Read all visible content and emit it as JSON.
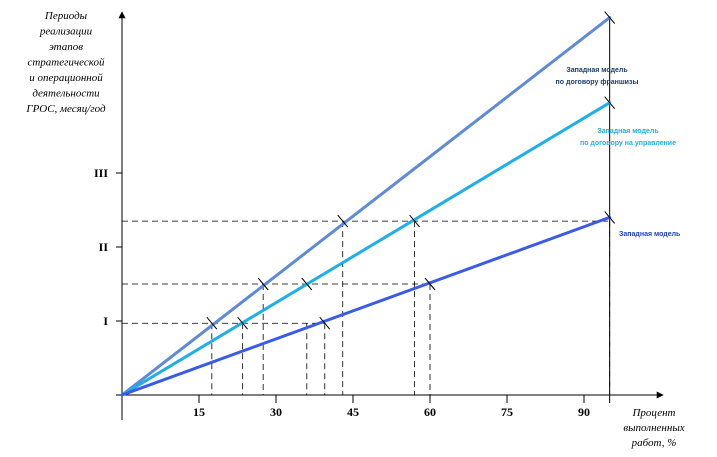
{
  "chart_data": {
    "type": "line",
    "title": "",
    "ylabel_lines": [
      "Периоды",
      "реализации",
      "этапов",
      "стратегической",
      "и операционной",
      "деятельности",
      "ГРОС, месяц/год"
    ],
    "xlabel_lines": [
      "Процент",
      "выполненных",
      "работ, %"
    ],
    "x_ticks": [
      {
        "label": "15",
        "value": 15
      },
      {
        "label": "30",
        "value": 30
      },
      {
        "label": "45",
        "value": 45
      },
      {
        "label": "60",
        "value": 60
      },
      {
        "label": "75",
        "value": 75
      },
      {
        "label": "90",
        "value": 90
      }
    ],
    "y_ticks": [
      {
        "label": "I",
        "value": 1
      },
      {
        "label": "II",
        "value": 2
      },
      {
        "label": "III",
        "value": 3
      }
    ],
    "xlim": [
      0,
      105
    ],
    "ylim": [
      0,
      5.2
    ],
    "series": [
      {
        "label_lines": [
          "Западная модель",
          "по договору франшизы"
        ],
        "color": "#5e8ad6",
        "x": [
          0,
          95
        ],
        "y": [
          0,
          5.1
        ]
      },
      {
        "label_lines": [
          "Западная модель",
          "по договору на управление"
        ],
        "color": "#1eaee8",
        "x": [
          0,
          95
        ],
        "y": [
          0,
          3.95
        ]
      },
      {
        "label_lines": [
          "Западная модель"
        ],
        "color": "#3a5ae8",
        "x": [
          0,
          95
        ],
        "y": [
          0,
          2.4
        ]
      }
    ],
    "markers": [
      {
        "x": 95,
        "y": 5.1
      },
      {
        "x": 95,
        "y": 3.95
      },
      {
        "x": 95,
        "y": 2.4
      },
      {
        "x": 17.5,
        "y": 0.97
      },
      {
        "x": 23.5,
        "y": 0.97
      },
      {
        "x": 39.5,
        "y": 0.97
      },
      {
        "x": 27.5,
        "y": 1.5
      },
      {
        "x": 36,
        "y": 1.5
      },
      {
        "x": 60,
        "y": 1.5
      },
      {
        "x": 43,
        "y": 2.35
      },
      {
        "x": 57,
        "y": 2.35
      }
    ],
    "guides": [
      {
        "y": 0.97,
        "x_to": 39.5,
        "drops": [
          17.5,
          23.5,
          36,
          39.5
        ]
      },
      {
        "y": 1.5,
        "x_to": 60,
        "drops": [
          27.5,
          60
        ]
      },
      {
        "y": 2.35,
        "x_to": 95,
        "drops": [
          43,
          57,
          95
        ]
      }
    ]
  }
}
